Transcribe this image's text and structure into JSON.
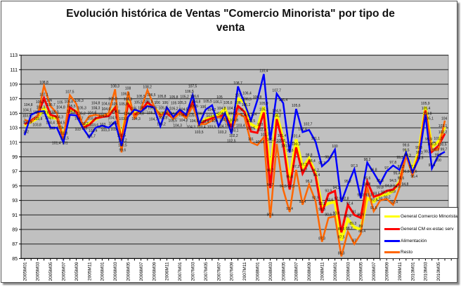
{
  "chart_data": {
    "type": "line",
    "title_line1": "Evolución histórica de Ventas \"Comercio Minorista\" por tipo de",
    "title_line2": "venta",
    "xlabel": "",
    "ylabel": "",
    "ylim": [
      85,
      113
    ],
    "y_ticks": [
      85,
      87,
      89,
      91,
      93,
      95,
      97,
      99,
      101,
      103,
      105,
      107,
      109,
      111,
      113
    ],
    "x_tick_labels": [
      "2005M01",
      "2005M03",
      "2005M05",
      "2005M07",
      "2005M09",
      "2005M11",
      "2006M01",
      "2006M03",
      "2006M05",
      "2006M07",
      "2006M09",
      "2006M11",
      "2007M01",
      "2007M03",
      "2007M05",
      "2007M07",
      "2007M09",
      "2007M11",
      "2008M01",
      "2008M03",
      "2008M05",
      "2008M07",
      "2008M09",
      "2008M11",
      "2009M01",
      "2009M03",
      "2009M05",
      "2009M07",
      "2009M09",
      "2009M11",
      "2010M01",
      "2010M03",
      "2010M05"
    ],
    "grid": true,
    "legend_position": "bottom-right",
    "series": [
      {
        "name": "General Comercio Minorista",
        "color": "#ffff00",
        "values": [
          103.3,
          103.8,
          104.3,
          105.7,
          104.4,
          104.3,
          101.8,
          105.5,
          105.3,
          103.2,
          103.6,
          104.2,
          104.6,
          104.8,
          105.8,
          101.5,
          106.5,
          105,
          105.3,
          106.3,
          105.8,
          104.8,
          105.2,
          104.3,
          105.3,
          104.6,
          106.6,
          103.4,
          104.2,
          104.5,
          104.8,
          105.6,
          103.4,
          107,
          106.5,
          103.5,
          103,
          105.9,
          96.7,
          104.9,
          101.4,
          95.8,
          101.4,
          97.5,
          98.8,
          96.7,
          92.1,
          92.6,
          92.8,
          87.5,
          90.4,
          89.3,
          89,
          93.3,
          92.8,
          93.7,
          93.8,
          94.3,
          95.6,
          99.5,
          97.2,
          99.8,
          105.9,
          100.3,
          101.1,
          103.1
        ]
      },
      {
        "name": "General CM ex-estac serv",
        "color": "#ff0000",
        "values": [
          103.5,
          104,
          104.6,
          107.1,
          104.8,
          104.5,
          101.5,
          105.8,
          105.2,
          103,
          103.4,
          104.3,
          104.5,
          104.6,
          105.8,
          101.2,
          106.3,
          104.8,
          105.3,
          106.5,
          105.8,
          104.7,
          105,
          104.3,
          105.2,
          104.5,
          106.5,
          103.4,
          104,
          104.3,
          104.5,
          104.8,
          103.1,
          106,
          105.2,
          102.5,
          102.3,
          105.1,
          94.7,
          104.2,
          100.8,
          94.5,
          100.3,
          96.7,
          98.4,
          96.4,
          91.3,
          93.9,
          94.3,
          88.6,
          92.4,
          91,
          90.6,
          95.6,
          93.5,
          93.8,
          94.3,
          94.5,
          95.4,
          99.3,
          96.6,
          99.3,
          105.4,
          99.7,
          100.5,
          102.2
        ]
      },
      {
        "name": "Alimentación",
        "color": "#0000ff",
        "values": [
          102,
          104.8,
          105.2,
          105.3,
          103,
          103,
          101,
          104.8,
          104.7,
          103,
          101.7,
          103,
          103.3,
          103,
          103.8,
          100.5,
          104.5,
          105.5,
          105.2,
          106,
          105.8,
          103.2,
          105.8,
          104.5,
          105.5,
          104.8,
          107.5,
          103.5,
          105.5,
          106.1,
          103.2,
          105,
          102.2,
          108.7,
          106.4,
          104,
          106.8,
          110.4,
          101.3,
          107.7,
          106.4,
          99.6,
          105.6,
          102.4,
          102.7,
          101.1,
          97.7,
          98.5,
          100,
          92.8,
          95.2,
          97.3,
          93.3,
          98.2,
          96.8,
          95.3,
          97,
          97.8,
          97.2,
          99.6,
          96.9,
          98.8,
          104.8,
          97.4,
          99.2,
          99.7
        ]
      },
      {
        "name": "Resto",
        "color": "#ff6600",
        "values": [
          104.1,
          103.8,
          104.6,
          108.8,
          106,
          105,
          101.4,
          107.5,
          106.3,
          103.3,
          104.6,
          104.8,
          104.6,
          105,
          108.3,
          99.6,
          108,
          104.3,
          105.5,
          108.2,
          106,
          104.5,
          105.5,
          104.2,
          105,
          104.3,
          106,
          103.5,
          103.5,
          104,
          104.5,
          104.3,
          102.5,
          105,
          104.5,
          101,
          100.6,
          101.7,
          90.6,
          100.8,
          94.5,
          91.4,
          97.2,
          92.4,
          95.2,
          92.9,
          87.3,
          90.6,
          90.8,
          85.3,
          88.7,
          87,
          88.4,
          94.8,
          91.5,
          93,
          93.2,
          92.4,
          94.8,
          99.3,
          96.4,
          99.3,
          105.1,
          99.9,
          100,
          104
        ]
      }
    ]
  }
}
